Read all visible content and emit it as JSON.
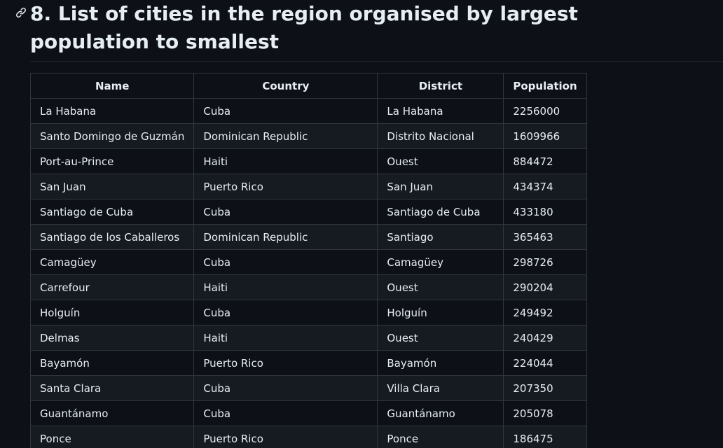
{
  "heading": {
    "icon": "link-icon",
    "title": "8. List of cities in the region organised by largest population to smallest"
  },
  "table": {
    "columns": [
      "Name",
      "Country",
      "District",
      "Population"
    ],
    "rows": [
      [
        "La Habana",
        "Cuba",
        "La Habana",
        "2256000"
      ],
      [
        "Santo Domingo de Guzmán",
        "Dominican Republic",
        "Distrito Nacional",
        "1609966"
      ],
      [
        "Port-au-Prince",
        "Haiti",
        "Ouest",
        "884472"
      ],
      [
        "San Juan",
        "Puerto Rico",
        "San Juan",
        "434374"
      ],
      [
        "Santiago de Cuba",
        "Cuba",
        "Santiago de Cuba",
        "433180"
      ],
      [
        "Santiago de los Caballeros",
        "Dominican Republic",
        "Santiago",
        "365463"
      ],
      [
        "Camagüey",
        "Cuba",
        "Camagüey",
        "298726"
      ],
      [
        "Carrefour",
        "Haiti",
        "Ouest",
        "290204"
      ],
      [
        "Holguín",
        "Cuba",
        "Holguín",
        "249492"
      ],
      [
        "Delmas",
        "Haiti",
        "Ouest",
        "240429"
      ],
      [
        "Bayamón",
        "Puerto Rico",
        "Bayamón",
        "224044"
      ],
      [
        "Santa Clara",
        "Cuba",
        "Villa Clara",
        "207350"
      ],
      [
        "Guantánamo",
        "Cuba",
        "Guantánamo",
        "205078"
      ],
      [
        "Ponce",
        "Puerto Rico",
        "Ponce",
        "186475"
      ]
    ]
  },
  "colors": {
    "background": "#0d1117",
    "text": "#e6edf3",
    "border": "#30363d",
    "row_alt": "#161b22"
  }
}
